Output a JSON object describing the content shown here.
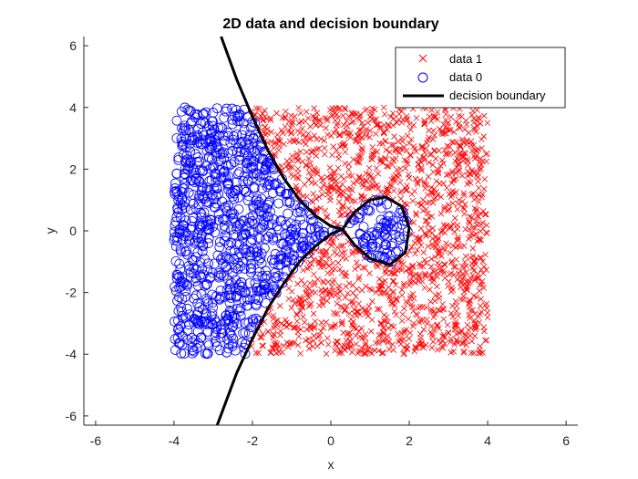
{
  "chart_data": {
    "type": "scatter",
    "title": "2D data and decision boundary",
    "xlabel": "x",
    "ylabel": "y",
    "xlim": [
      -6.3,
      6.3
    ],
    "ylim": [
      -6.3,
      6.3
    ],
    "xticks": [
      "-6",
      "-4",
      "-2",
      "0",
      "2",
      "4",
      "6"
    ],
    "yticks": [
      "-6",
      "-4",
      "-2",
      "0",
      "2",
      "4",
      "6"
    ],
    "grid": false,
    "legend_position": "top-right",
    "series": [
      {
        "name": "data 1",
        "marker": "x",
        "color": "#ff0000",
        "description_of_region": "points uniformly filling the square [-4,4]x[-4,4] on the right side of the decision boundary, excluding the interior of the loop",
        "x_range": [
          -4,
          4
        ],
        "y_range": [
          -4,
          4
        ],
        "approx_count": 1400
      },
      {
        "name": "data 0",
        "marker": "o",
        "color": "#0000ff",
        "description_of_region": "points uniformly filling the square [-4,4]x[-4,4] on the left side of the decision boundary plus the interior of the loop",
        "x_range": [
          -4,
          4
        ],
        "y_range": [
          -4,
          4
        ],
        "approx_count": 1200
      }
    ],
    "decision_boundary": {
      "name": "decision boundary",
      "color": "#000000",
      "upper_branch": [
        [
          -2.8,
          6.3
        ],
        [
          -2.4,
          4.9
        ],
        [
          -2.0,
          3.7
        ],
        [
          -1.6,
          2.6
        ],
        [
          -1.2,
          1.7
        ],
        [
          -0.8,
          1.0
        ],
        [
          -0.4,
          0.5
        ],
        [
          0.0,
          0.15
        ],
        [
          0.3,
          0.05
        ]
      ],
      "lower_branch": [
        [
          -2.9,
          -6.3
        ],
        [
          -2.4,
          -4.6
        ],
        [
          -2.0,
          -3.5
        ],
        [
          -1.6,
          -2.5
        ],
        [
          -1.2,
          -1.7
        ],
        [
          -0.8,
          -1.0
        ],
        [
          -0.4,
          -0.5
        ],
        [
          0.0,
          -0.1
        ],
        [
          0.3,
          0.05
        ]
      ],
      "loop": [
        [
          0.3,
          0.05
        ],
        [
          0.6,
          0.6
        ],
        [
          1.0,
          1.0
        ],
        [
          1.4,
          1.1
        ],
        [
          1.8,
          0.8
        ],
        [
          2.0,
          0.1
        ],
        [
          1.9,
          -0.7
        ],
        [
          1.5,
          -1.1
        ],
        [
          1.0,
          -0.9
        ],
        [
          0.6,
          -0.45
        ],
        [
          0.3,
          0.05
        ]
      ]
    }
  }
}
